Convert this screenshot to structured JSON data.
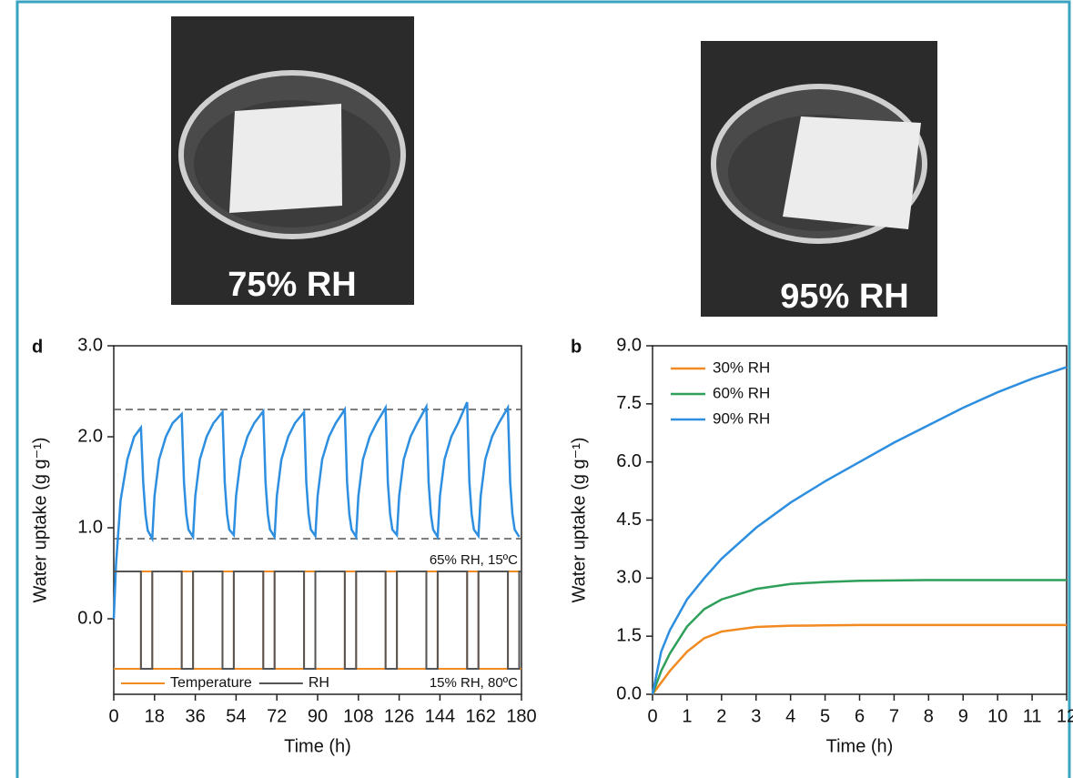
{
  "photos": [
    {
      "label": "75% RH"
    },
    {
      "label": "95% RH"
    }
  ],
  "chart_data": [
    {
      "type": "line",
      "panel": "d",
      "xlabel": "Time (h)",
      "ylabel": "Water uptake (g g⁻¹)",
      "xlim": [
        0,
        180
      ],
      "xticks": [
        0,
        18,
        36,
        54,
        72,
        90,
        108,
        126,
        144,
        162,
        180
      ],
      "ylim": [
        -0.83,
        3.0
      ],
      "yticks": [
        {
          "value": 0,
          "label": "0.0"
        },
        {
          "value": 1,
          "label": "1.0"
        },
        {
          "value": 2,
          "label": "2.0"
        },
        {
          "value": 3,
          "label": "3.0"
        }
      ],
      "ref_lines": [
        2.3,
        0.88
      ],
      "x": [
        0,
        1,
        3,
        6,
        9,
        12,
        13,
        14,
        15,
        17,
        18,
        20,
        23,
        26,
        30,
        31,
        32,
        33,
        35,
        36,
        38,
        41,
        44,
        48,
        49,
        50,
        51,
        53,
        54,
        56,
        59,
        62,
        66,
        67,
        68,
        69,
        71,
        72,
        74,
        77,
        80,
        84,
        85,
        86,
        87,
        89,
        90,
        92,
        95,
        98,
        102,
        103,
        104,
        105,
        107,
        108,
        110,
        113,
        116,
        120,
        121,
        122,
        123,
        125,
        126,
        128,
        131,
        134,
        138,
        139,
        140,
        141,
        143,
        144,
        146,
        149,
        152,
        156,
        157,
        158,
        159,
        161,
        162,
        164,
        167,
        170,
        174,
        175,
        176,
        177,
        179
      ],
      "series": [
        {
          "color": "#2e8fe0",
          "values": [
            0,
            0.6,
            1.3,
            1.75,
            2.0,
            2.1,
            1.5,
            1.15,
            0.97,
            0.88,
            1.35,
            1.75,
            2.0,
            2.15,
            2.25,
            1.5,
            1.15,
            0.98,
            0.9,
            1.35,
            1.75,
            2.0,
            2.15,
            2.27,
            1.5,
            1.15,
            0.98,
            0.92,
            1.35,
            1.75,
            2.0,
            2.15,
            2.28,
            1.5,
            1.15,
            0.98,
            0.9,
            1.35,
            1.75,
            2.0,
            2.15,
            2.27,
            1.5,
            1.15,
            0.98,
            0.91,
            1.35,
            1.75,
            2.0,
            2.15,
            2.3,
            1.5,
            1.15,
            0.98,
            0.9,
            1.35,
            1.75,
            2.0,
            2.15,
            2.32,
            1.5,
            1.15,
            0.98,
            0.92,
            1.35,
            1.75,
            2.0,
            2.15,
            2.33,
            1.5,
            1.15,
            0.98,
            0.9,
            1.35,
            1.75,
            2.0,
            2.15,
            2.38,
            1.5,
            1.15,
            0.98,
            0.91,
            1.35,
            1.75,
            2.0,
            2.15,
            2.32,
            1.5,
            1.15,
            0.98,
            0.9
          ]
        }
      ],
      "step_series": [
        {
          "name": "Temperature",
          "color": "#f28a22",
          "x": [
            0,
            12,
            12,
            17,
            17,
            30,
            30,
            35,
            35,
            48,
            48,
            53,
            53,
            66,
            66,
            71,
            71,
            84,
            84,
            89,
            89,
            102,
            102,
            107,
            107,
            120,
            120,
            125,
            125,
            138,
            138,
            143,
            143,
            156,
            156,
            161,
            161,
            174,
            174,
            179,
            179,
            180
          ],
          "values": [
            15,
            15,
            80,
            80,
            15,
            15,
            80,
            80,
            15,
            15,
            80,
            80,
            15,
            15,
            80,
            80,
            15,
            15,
            80,
            80,
            15,
            15,
            80,
            80,
            15,
            15,
            80,
            80,
            15,
            15,
            80,
            80,
            15,
            15,
            80,
            80,
            15,
            15,
            80,
            80,
            15,
            15
          ]
        },
        {
          "name": "RH",
          "color": "#555555",
          "x": [
            0,
            12,
            12,
            17,
            17,
            30,
            30,
            35,
            35,
            48,
            48,
            53,
            53,
            66,
            66,
            71,
            71,
            84,
            84,
            89,
            89,
            102,
            102,
            107,
            107,
            120,
            120,
            125,
            125,
            138,
            138,
            143,
            143,
            156,
            156,
            161,
            161,
            174,
            174,
            179,
            179,
            180
          ],
          "values": [
            65,
            65,
            15,
            15,
            65,
            65,
            15,
            15,
            65,
            65,
            15,
            15,
            65,
            65,
            15,
            15,
            65,
            65,
            15,
            15,
            65,
            65,
            15,
            15,
            65,
            65,
            15,
            15,
            65,
            65,
            15,
            15,
            65,
            65,
            15,
            15,
            65,
            65,
            15,
            15,
            65,
            65
          ]
        }
      ],
      "annotations": [
        "65% RH, 15ºC",
        "15% RH, 80ºC"
      ],
      "legend": "lower center"
    },
    {
      "type": "line",
      "panel": "b",
      "xlabel": "Time (h)",
      "ylabel": "Water uptake (g g⁻¹)",
      "xlim": [
        0,
        12
      ],
      "xticks": [
        0,
        1,
        2,
        3,
        4,
        5,
        6,
        7,
        8,
        9,
        10,
        11,
        12
      ],
      "ylim": [
        0,
        9
      ],
      "yticks": [
        {
          "value": 0,
          "label": "0.0"
        },
        {
          "value": 1.5,
          "label": "1.5"
        },
        {
          "value": 3,
          "label": "3.0"
        },
        {
          "value": 4.5,
          "label": "4.5"
        },
        {
          "value": 6,
          "label": "6.0"
        },
        {
          "value": 7.5,
          "label": "7.5"
        },
        {
          "value": 9,
          "label": "9.0"
        }
      ],
      "x": [
        0,
        0.25,
        0.5,
        1,
        1.5,
        2,
        3,
        4,
        5,
        6,
        7,
        8,
        9,
        10,
        11,
        12
      ],
      "series": [
        {
          "name": "30% RH",
          "color": "#f28a22",
          "values": [
            0,
            0.3,
            0.6,
            1.1,
            1.45,
            1.62,
            1.74,
            1.77,
            1.78,
            1.79,
            1.79,
            1.79,
            1.79,
            1.79,
            1.79,
            1.79
          ]
        },
        {
          "name": "60% RH",
          "color": "#2fa05a",
          "values": [
            0,
            0.6,
            1.05,
            1.75,
            2.2,
            2.45,
            2.72,
            2.85,
            2.9,
            2.93,
            2.94,
            2.95,
            2.95,
            2.95,
            2.95,
            2.95
          ]
        },
        {
          "name": "90% RH",
          "color": "#2e8fe0",
          "values": [
            0,
            1.1,
            1.65,
            2.45,
            3.0,
            3.5,
            4.3,
            4.95,
            5.5,
            6.0,
            6.5,
            6.95,
            7.4,
            7.8,
            8.15,
            8.45
          ]
        }
      ],
      "legend": "upper left"
    }
  ]
}
